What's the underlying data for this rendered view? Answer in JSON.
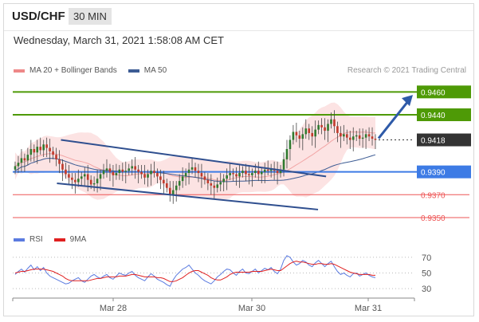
{
  "header": {
    "symbol": "USD/CHF",
    "timeframe": "30 MIN",
    "date": "Wednesday, March 31, 2021 1:58:08 AM CET",
    "copyright": "Research © 2021 Trading Central"
  },
  "legend": {
    "ma20_label": "MA 20 + Bollinger Bands",
    "ma50_label": "MA 50",
    "rsi_label": "RSI",
    "rsi_ma_label": "9MA"
  },
  "colors": {
    "green": "#4e9a06",
    "blue_support": "#3d7be5",
    "red_level": "#ee5555",
    "current": "#333333",
    "channel": "#2f4f8f",
    "arrow": "#2e5aa8",
    "bollinger_fill": "#fbdcdc",
    "ma50": "#3d5c94",
    "rsi": "#5b7be0",
    "rsi_ma": "#e02020"
  },
  "chart_data": [
    {
      "type": "candlestick",
      "title": "USD/CHF 30 MIN",
      "y_range": [
        0.9343,
        0.947
      ],
      "x_ticks": [
        "Mar 28",
        "Mar 30",
        "Mar 31"
      ],
      "price_levels": [
        {
          "value": 0.946,
          "label": "0.9460",
          "kind": "resistance",
          "color": "#4e9a06"
        },
        {
          "value": 0.944,
          "label": "0.9440",
          "kind": "resistance",
          "color": "#4e9a06"
        },
        {
          "value": 0.9418,
          "label": "0.9418",
          "kind": "current",
          "color": "#333333"
        },
        {
          "value": 0.939,
          "label": "0.9390",
          "kind": "pivot",
          "color": "#3d7be5"
        },
        {
          "value": 0.937,
          "label": "0.9370",
          "kind": "support",
          "color": "#ee5555"
        },
        {
          "value": 0.935,
          "label": "0.9350",
          "kind": "support",
          "color": "#ee5555"
        }
      ],
      "close_series": [
        0.9395,
        0.9398,
        0.9402,
        0.94,
        0.9405,
        0.941,
        0.9407,
        0.9412,
        0.9409,
        0.9414,
        0.9411,
        0.9408,
        0.9405,
        0.9401,
        0.9397,
        0.9392,
        0.9388,
        0.9385,
        0.9383,
        0.9381,
        0.9384,
        0.9386,
        0.9388,
        0.9383,
        0.9379,
        0.938,
        0.9384,
        0.9388,
        0.9391,
        0.9393,
        0.939,
        0.9387,
        0.9389,
        0.9392,
        0.939,
        0.9391,
        0.9393,
        0.9395,
        0.9392,
        0.939,
        0.9388,
        0.9385,
        0.9388,
        0.9391,
        0.9389,
        0.9386,
        0.9383,
        0.938,
        0.9376,
        0.937,
        0.9374,
        0.9378,
        0.9382,
        0.9386,
        0.9389,
        0.9392,
        0.9394,
        0.9391,
        0.9389,
        0.9386,
        0.9383,
        0.938,
        0.9378,
        0.9376,
        0.9379,
        0.9381,
        0.9384,
        0.9387,
        0.9389,
        0.9388,
        0.9386,
        0.9389,
        0.9391,
        0.9388,
        0.9387,
        0.9389,
        0.9391,
        0.9388,
        0.939,
        0.9392,
        0.9391,
        0.9393,
        0.9391,
        0.9389,
        0.9392,
        0.9401,
        0.941,
        0.9418,
        0.9425,
        0.9422,
        0.9419,
        0.9423,
        0.9428,
        0.9424,
        0.9421,
        0.9427,
        0.9431,
        0.9429,
        0.9426,
        0.9432,
        0.9436,
        0.943,
        0.9424,
        0.9421,
        0.9423,
        0.942,
        0.9418,
        0.9421,
        0.9422,
        0.9419,
        0.942,
        0.9423,
        0.9421,
        0.9419,
        0.9418
      ],
      "channel": [
        {
          "name": "upper",
          "x": [
            0.12,
            0.78
          ],
          "y": [
            0.9418,
            0.9386
          ]
        },
        {
          "name": "lower",
          "x": [
            0.11,
            0.76
          ],
          "y": [
            0.938,
            0.9357
          ]
        }
      ],
      "arrow_target": 0.9456
    },
    {
      "type": "line",
      "title": "RSI",
      "y_range": [
        22,
        82
      ],
      "y_ticks": [
        70,
        50,
        30
      ],
      "series": [
        {
          "name": "RSI",
          "values": [
            48,
            52,
            55,
            51,
            56,
            60,
            54,
            58,
            53,
            57,
            50,
            46,
            44,
            42,
            40,
            38,
            36,
            37,
            40,
            42,
            44,
            40,
            38,
            42,
            46,
            48,
            45,
            43,
            46,
            48,
            44,
            42,
            46,
            50,
            48,
            47,
            50,
            52,
            47,
            44,
            42,
            40,
            45,
            49,
            46,
            42,
            40,
            38,
            35,
            33,
            41,
            47,
            51,
            55,
            57,
            60,
            55,
            50,
            47,
            43,
            40,
            38,
            36,
            40,
            45,
            48,
            52,
            55,
            54,
            50,
            47,
            52,
            55,
            50,
            49,
            52,
            55,
            50,
            53,
            56,
            54,
            57,
            52,
            49,
            55,
            66,
            72,
            70,
            64,
            60,
            62,
            66,
            64,
            60,
            58,
            63,
            66,
            62,
            58,
            62,
            65,
            58,
            52,
            48,
            50,
            47,
            45,
            49,
            50,
            46,
            48,
            50,
            47,
            45,
            44
          ]
        },
        {
          "name": "9MA",
          "values": [
            50,
            51,
            52,
            52,
            53,
            54,
            55,
            55,
            55,
            55,
            54,
            53,
            52,
            50,
            48,
            46,
            43,
            41,
            40,
            40,
            40,
            40,
            40,
            40,
            41,
            42,
            43,
            43,
            44,
            45,
            45,
            45,
            45,
            46,
            46,
            46,
            47,
            48,
            48,
            47,
            46,
            45,
            45,
            45,
            45,
            44,
            44,
            43,
            41,
            39,
            39,
            40,
            42,
            44,
            47,
            50,
            52,
            53,
            53,
            51,
            49,
            47,
            44,
            42,
            41,
            41,
            43,
            45,
            48,
            50,
            51,
            51,
            51,
            51,
            51,
            52,
            52,
            52,
            52,
            53,
            54,
            55,
            54,
            53,
            53,
            56,
            59,
            62,
            64,
            65,
            64,
            64,
            63,
            62,
            61,
            61,
            62,
            62,
            61,
            61,
            62,
            61,
            59,
            57,
            55,
            53,
            51,
            50,
            49,
            48,
            48,
            48,
            48,
            47,
            47
          ]
        }
      ]
    }
  ]
}
